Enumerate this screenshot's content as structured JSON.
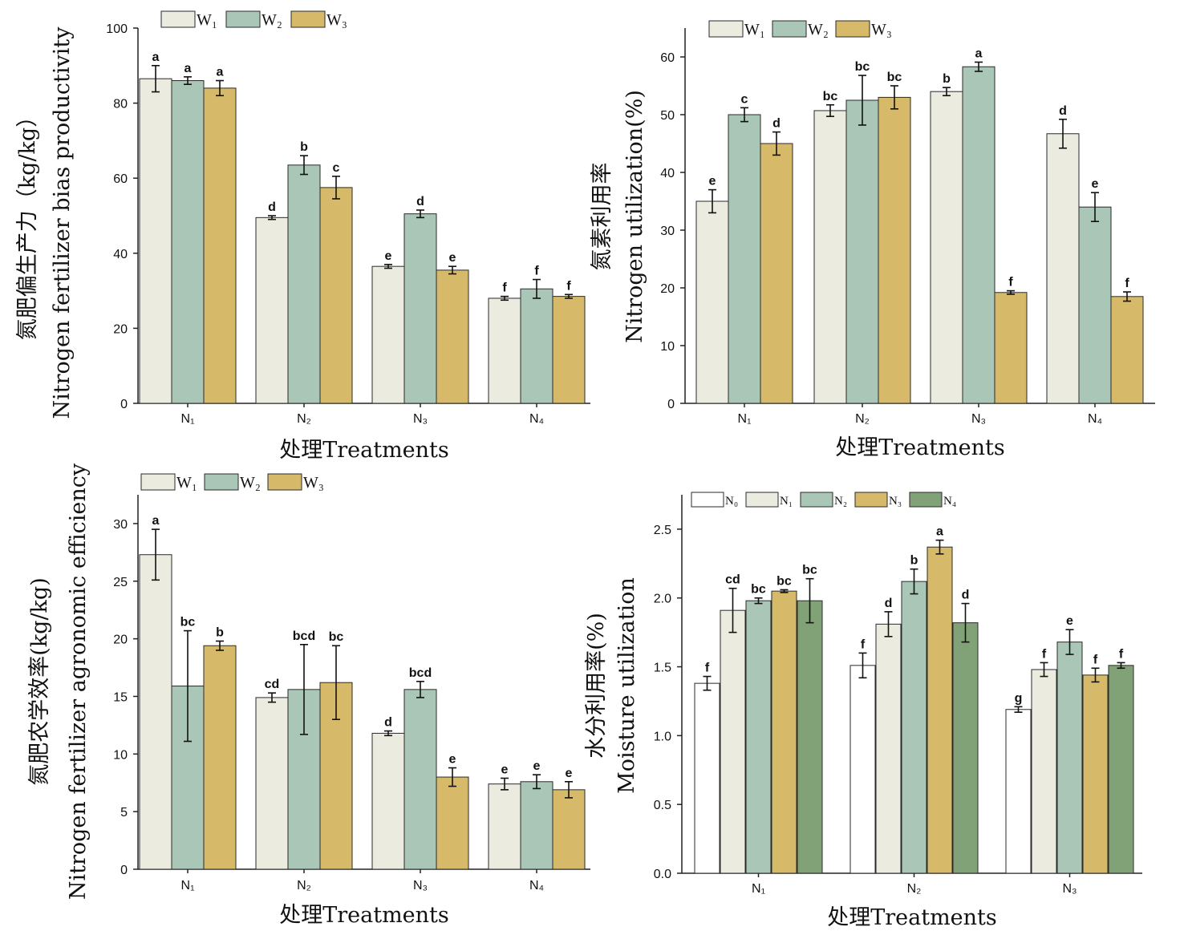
{
  "chart_data": [
    {
      "type": "bar",
      "categories": [
        "N₁",
        "N₂",
        "N₃",
        "N₄"
      ],
      "series": [
        {
          "name": "W₁",
          "values": [
            86.5,
            49.5,
            36.5,
            28.0
          ],
          "errors": [
            3.5,
            0.5,
            0.5,
            0.5
          ],
          "labels": [
            "a",
            "d",
            "e",
            "f"
          ],
          "color": "#ebebdf"
        },
        {
          "name": "W₂",
          "values": [
            86.0,
            63.5,
            50.5,
            30.5
          ],
          "errors": [
            1.0,
            2.5,
            1.0,
            2.5
          ],
          "labels": [
            "a",
            "b",
            "d",
            "f"
          ],
          "color": "#a9c6b6"
        },
        {
          "name": "W₃",
          "values": [
            84.0,
            57.5,
            35.5,
            28.5
          ],
          "errors": [
            2.0,
            3.0,
            1.0,
            0.5
          ],
          "labels": [
            "a",
            "c",
            "e",
            "f"
          ],
          "color": "#d6ba6a"
        }
      ],
      "ylabel_cn": "氮肥偏生产力（kg/kg）",
      "ylabel_en": "Nitrogen fertilizer bias productivity",
      "xlabel": "处理Treatments",
      "ylim": [
        0,
        100
      ],
      "yticks": [
        0,
        20,
        40,
        60,
        80,
        100
      ],
      "legend": "top-left"
    },
    {
      "type": "bar",
      "categories": [
        "N₁",
        "N₂",
        "N₃",
        "N₄"
      ],
      "series": [
        {
          "name": "W₁",
          "values": [
            35.0,
            50.7,
            54.0,
            46.7
          ],
          "errors": [
            2.0,
            1.0,
            0.7,
            2.5
          ],
          "labels": [
            "e",
            "bc",
            "b",
            "d"
          ],
          "color": "#ebebdf"
        },
        {
          "name": "W₂",
          "values": [
            50.0,
            52.5,
            58.3,
            34.0
          ],
          "errors": [
            1.2,
            4.3,
            0.8,
            2.5
          ],
          "labels": [
            "c",
            "bc",
            "a",
            "e"
          ],
          "color": "#a9c6b6"
        },
        {
          "name": "W₃",
          "values": [
            45.0,
            53.0,
            19.2,
            18.5
          ],
          "errors": [
            2.0,
            2.0,
            0.3,
            0.8
          ],
          "labels": [
            "d",
            "bc",
            "f",
            "f"
          ],
          "color": "#d6ba6a"
        }
      ],
      "ylabel_cn": "氮素利用率",
      "ylabel_en": "Nitrogen utilization(%)",
      "xlabel": "处理Treatments",
      "ylim": [
        0,
        65
      ],
      "yticks": [
        0,
        10,
        20,
        30,
        40,
        50,
        60
      ],
      "legend": "top-left"
    },
    {
      "type": "bar",
      "categories": [
        "N₁",
        "N₂",
        "N₃",
        "N₄"
      ],
      "series": [
        {
          "name": "W₁",
          "values": [
            27.3,
            14.9,
            11.8,
            7.4
          ],
          "errors": [
            2.2,
            0.4,
            0.2,
            0.5
          ],
          "labels": [
            "a",
            "cd",
            "d",
            "e"
          ],
          "color": "#ebebdf"
        },
        {
          "name": "W₂",
          "values": [
            15.9,
            15.6,
            15.6,
            7.6
          ],
          "errors": [
            4.8,
            3.9,
            0.7,
            0.6
          ],
          "labels": [
            "bc",
            "bcd",
            "bcd",
            "e"
          ],
          "color": "#a9c6b6"
        },
        {
          "name": "W₃",
          "values": [
            19.4,
            16.2,
            8.0,
            6.9
          ],
          "errors": [
            0.4,
            3.2,
            0.8,
            0.7
          ],
          "labels": [
            "b",
            "bc",
            "e",
            "e"
          ],
          "color": "#d6ba6a"
        }
      ],
      "ylabel_cn": "氮肥农学效率(kg/kg)",
      "ylabel_en": "Nitrogen fertilizer agronomic efficiency",
      "xlabel": "处理Treatments",
      "ylim": [
        0,
        32.5
      ],
      "yticks": [
        0,
        5,
        10,
        15,
        20,
        25,
        30
      ],
      "legend": "top-left"
    },
    {
      "type": "bar",
      "categories": [
        "N₁",
        "N₂",
        "N₃"
      ],
      "series": [
        {
          "name": "N₀",
          "values": [
            1.38,
            1.51,
            1.19
          ],
          "errors": [
            0.05,
            0.09,
            0.02
          ],
          "labels": [
            "f",
            "f",
            "g"
          ],
          "color": "#ffffff"
        },
        {
          "name": "N₁",
          "values": [
            1.91,
            1.81,
            1.48
          ],
          "errors": [
            0.16,
            0.09,
            0.05
          ],
          "labels": [
            "cd",
            "d",
            "f"
          ],
          "color": "#ebebdf"
        },
        {
          "name": "N₂",
          "values": [
            1.98,
            2.12,
            1.68
          ],
          "errors": [
            0.02,
            0.09,
            0.09
          ],
          "labels": [
            "bc",
            "b",
            "e"
          ],
          "color": "#a9c6b6"
        },
        {
          "name": "N₃",
          "values": [
            2.05,
            2.37,
            1.44
          ],
          "errors": [
            0.01,
            0.05,
            0.05
          ],
          "labels": [
            "bc",
            "a",
            "f"
          ],
          "color": "#d6ba6a"
        },
        {
          "name": "N₄",
          "values": [
            1.98,
            1.82,
            1.51
          ],
          "errors": [
            0.16,
            0.14,
            0.02
          ],
          "labels": [
            "bc",
            "d",
            "f"
          ],
          "color": "#81a277"
        }
      ],
      "ylabel_cn": "水分利用率(%)",
      "ylabel_en": "Moisture utilization",
      "xlabel": "处理Treatments",
      "ylim": [
        0,
        2.75
      ],
      "yticks": [
        "0.0",
        "0.5",
        "1.0",
        "1.5",
        "2.0",
        "2.5"
      ],
      "legend": "top-left"
    }
  ]
}
